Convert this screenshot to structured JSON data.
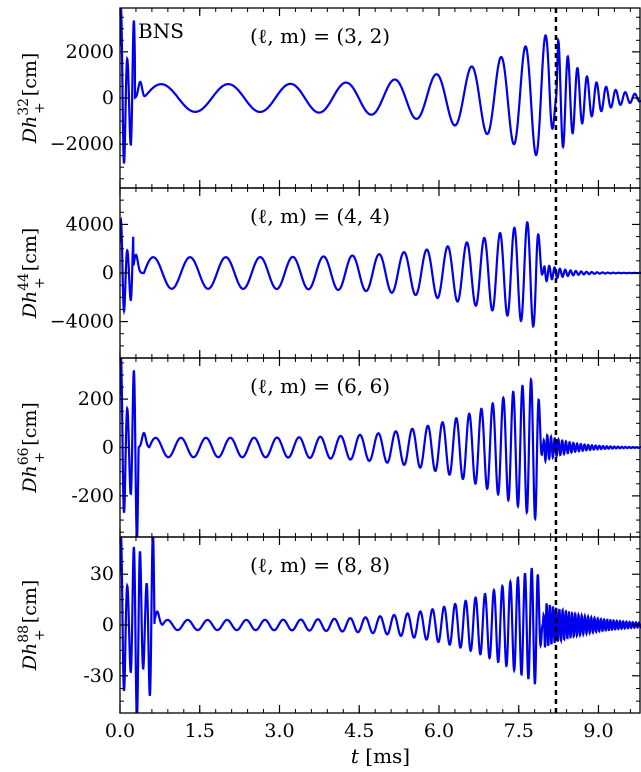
{
  "chart_data": [
    {
      "type": "line",
      "ylabel": {
        "base": "Dh",
        "sup": "32",
        "sub": "+",
        "unit": " [cm]"
      },
      "annotation": "(ℓ, m) = (3, 2)",
      "tag": "BNS",
      "ylim": [
        -3900,
        3900
      ],
      "yticks": [
        -2000,
        0,
        2000
      ],
      "ytick_labels": [
        "−2000",
        "0",
        "2000"
      ],
      "series_color": "#0000ee",
      "waveform": {
        "burst": {
          "amp": 4000,
          "t_end": 0.28
        },
        "spike": {
          "t": 0.38,
          "amp": 700
        },
        "inspiral": {
          "t0": 0.45,
          "t_merger": 8.2,
          "amp_start": 600,
          "amp_peak": 3000,
          "period_start": 1.3,
          "period_end": 0.3
        },
        "ringdown": {
          "amp": 2700,
          "decay_ms": 0.55,
          "period": 0.18
        }
      }
    },
    {
      "type": "line",
      "ylabel": {
        "base": "Dh",
        "sup": "44",
        "sub": "+",
        "unit": " [cm]"
      },
      "annotation": "(ℓ, m) = (4, 4)",
      "ylim": [
        -7000,
        7000
      ],
      "yticks": [
        -4000,
        0,
        4000
      ],
      "ytick_labels": [
        "−4000",
        "0",
        "4000"
      ],
      "series_color": "#0000ee",
      "waveform": {
        "burst": {
          "amp": 4400,
          "t_end": 0.25
        },
        "spike": {
          "t": 0.3,
          "amp": 1500
        },
        "inspiral": {
          "t0": 0.45,
          "t_merger": 7.95,
          "amp_start": 1300,
          "amp_peak": 4800,
          "period_start": 0.7,
          "period_end": 0.2
        },
        "ringdown": {
          "amp": 800,
          "decay_ms": 0.4,
          "period": 0.1
        }
      }
    },
    {
      "type": "line",
      "ylabel": {
        "base": "Dh",
        "sup": "66",
        "sub": "+",
        "unit": " [cm]"
      },
      "annotation": "(ℓ, m) = (6, 6)",
      "ylim": [
        -370,
        370
      ],
      "yticks": [
        -200,
        0,
        200
      ],
      "ytick_labels": [
        "-200",
        "0",
        "200"
      ],
      "series_color": "#0000ee",
      "waveform": {
        "burst": {
          "amp": 380,
          "t_end": 0.35
        },
        "spike": {
          "t": 0.45,
          "amp": 60
        },
        "inspiral": {
          "t0": 0.55,
          "t_merger": 7.95,
          "amp_start": 40,
          "amp_peak": 320,
          "period_start": 0.48,
          "period_end": 0.14
        },
        "ringdown": {
          "amp": 60,
          "decay_ms": 0.5,
          "period": 0.07
        }
      }
    },
    {
      "type": "line",
      "ylabel": {
        "base": "Dh",
        "sup": "88",
        "sub": "+",
        "unit": " [cm]"
      },
      "annotation": "(ℓ, m) = (8, 8)",
      "ylim": [
        -52,
        52
      ],
      "yticks": [
        -30,
        0,
        30
      ],
      "ytick_labels": [
        "-30",
        "0",
        "30"
      ],
      "series_color": "#0000ee",
      "waveform": {
        "burst": {
          "amp": 55,
          "t_end": 0.65
        },
        "spike": {
          "t": 0.7,
          "amp": 8
        },
        "inspiral": {
          "t0": 0.8,
          "t_merger": 7.95,
          "amp_start": 3,
          "amp_peak": 38,
          "period_start": 0.38,
          "period_end": 0.11
        },
        "ringdown": {
          "amp": 14,
          "decay_ms": 0.8,
          "period": 0.06
        }
      }
    }
  ],
  "x_axis": {
    "label_var": "t",
    "label_unit": " [ms]",
    "xlim": [
      0,
      9.8
    ],
    "ticks": [
      0.0,
      1.5,
      3.0,
      4.5,
      6.0,
      7.5,
      9.0
    ],
    "tick_labels": [
      "0.0",
      "1.5",
      "3.0",
      "4.5",
      "6.0",
      "7.5",
      "9.0"
    ]
  },
  "merger_line": {
    "t": 8.2,
    "style": "dashed",
    "color": "#000000"
  }
}
